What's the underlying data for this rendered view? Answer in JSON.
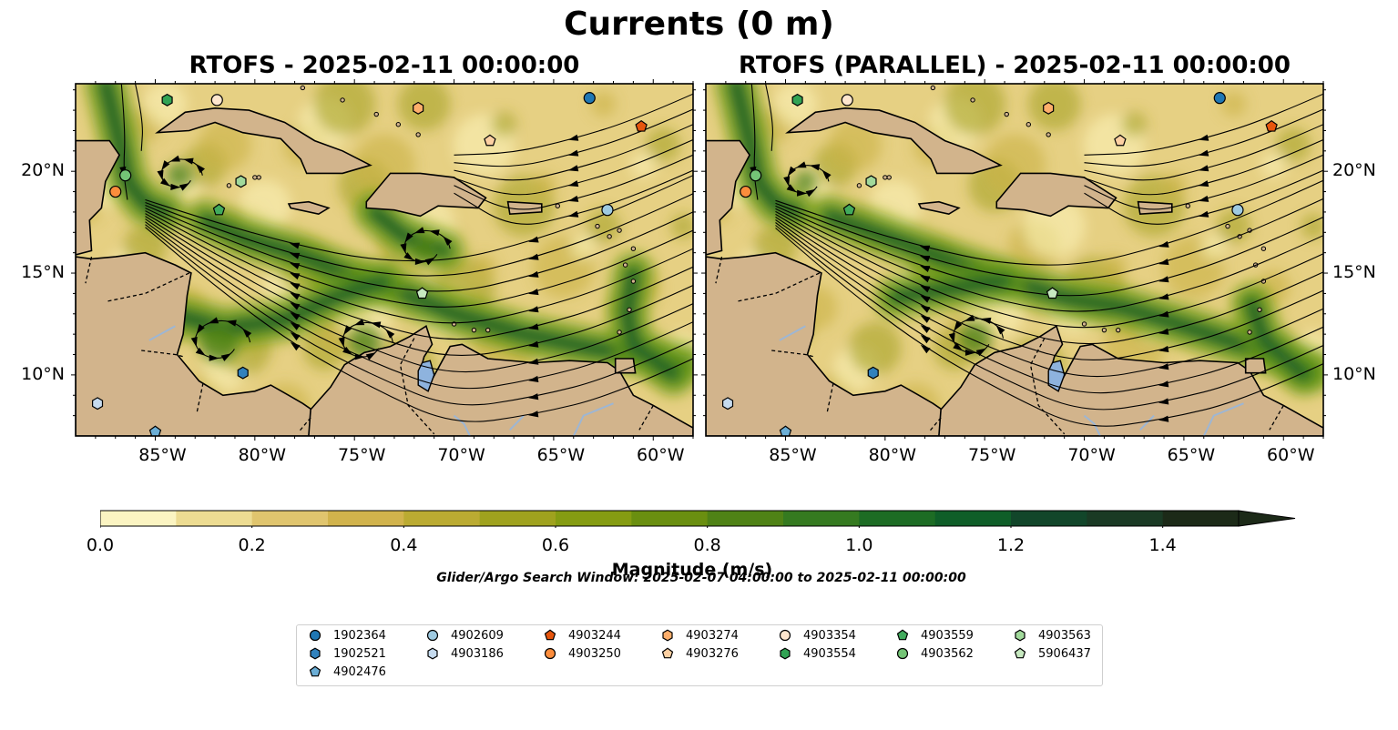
{
  "title": "Currents (0 m)",
  "panels": [
    {
      "title": "RTOFS - 2025-02-11 00:00:00"
    },
    {
      "title": "RTOFS (PARALLEL) - 2025-02-11 00:00:00"
    }
  ],
  "map": {
    "lon_range": [
      -89,
      -58
    ],
    "lat_range": [
      7.0,
      24.3
    ],
    "lon_ticks": [
      "85°W",
      "80°W",
      "75°W",
      "70°W",
      "65°W",
      "60°W"
    ],
    "lon_tick_values": [
      -85,
      -80,
      -75,
      -70,
      -65,
      -60
    ],
    "lat_ticks": [
      "20°N",
      "15°N",
      "10°N"
    ],
    "lat_tick_values": [
      20,
      15,
      10
    ],
    "land_color": "#d2b48c",
    "lake_color": "#8eb3de"
  },
  "colorbar": {
    "label": "Magnitude (m/s)",
    "ticks": [
      "0.0",
      "0.2",
      "0.4",
      "0.6",
      "0.8",
      "1.0",
      "1.2",
      "1.4"
    ],
    "tick_values": [
      0.0,
      0.2,
      0.4,
      0.6,
      0.8,
      1.0,
      1.2,
      1.4
    ],
    "range": [
      0.0,
      1.5
    ],
    "extend": "max",
    "colors": [
      "#fbf4c2",
      "#eddc92",
      "#e0c56e",
      "#d1b34c",
      "#bbab32",
      "#9fa21e",
      "#859c12",
      "#6a8f10",
      "#4f8216",
      "#357a20",
      "#1d6c24",
      "#0f5e28",
      "#12462a",
      "#1a3a24",
      "#1c2a18"
    ]
  },
  "search_window": "Glider/Argo Search Window: 2025-02-07 04:00:00 to 2025-02-11 00:00:00",
  "floats": [
    {
      "id": "1902364",
      "marker": "circle",
      "color": "#1f77b4",
      "lon": -63.2,
      "lat": 23.6
    },
    {
      "id": "1902521",
      "marker": "hexagon",
      "color": "#3182bd",
      "lon": -80.6,
      "lat": 10.1
    },
    {
      "id": "4902476",
      "marker": "pentagon",
      "color": "#6baed6",
      "lon": -85.0,
      "lat": 7.2
    },
    {
      "id": "4902609",
      "marker": "circle",
      "color": "#9ecae1",
      "lon": -62.3,
      "lat": 18.1
    },
    {
      "id": "4903186",
      "marker": "hexagon",
      "color": "#c6dbef",
      "lon": -87.9,
      "lat": 8.6
    },
    {
      "id": "4903244",
      "marker": "pentagon",
      "color": "#e6550d",
      "lon": -60.6,
      "lat": 22.2
    },
    {
      "id": "4903250",
      "marker": "circle",
      "color": "#fd8d3c",
      "lon": -87.0,
      "lat": 19.0
    },
    {
      "id": "4903274",
      "marker": "hexagon",
      "color": "#fdae6b",
      "lon": -71.8,
      "lat": 23.1
    },
    {
      "id": "4903276",
      "marker": "pentagon",
      "color": "#fdd0a2",
      "lon": -68.2,
      "lat": 21.5
    },
    {
      "id": "4903354",
      "marker": "circle",
      "color": "#fee6ce",
      "lon": -81.9,
      "lat": 23.5
    },
    {
      "id": "4903554",
      "marker": "hexagon",
      "color": "#31a354",
      "lon": -84.4,
      "lat": 23.5
    },
    {
      "id": "4903559",
      "marker": "pentagon",
      "color": "#41ab5d",
      "lon": -81.8,
      "lat": 18.1
    },
    {
      "id": "4903562",
      "marker": "circle",
      "color": "#74c476",
      "lon": -86.5,
      "lat": 19.8
    },
    {
      "id": "4903563",
      "marker": "hexagon",
      "color": "#a1d99b",
      "lon": -80.7,
      "lat": 19.5
    },
    {
      "id": "5906437",
      "marker": "pentagon",
      "color": "#c7e9c0",
      "lon": -71.6,
      "lat": 14.0
    }
  ]
}
